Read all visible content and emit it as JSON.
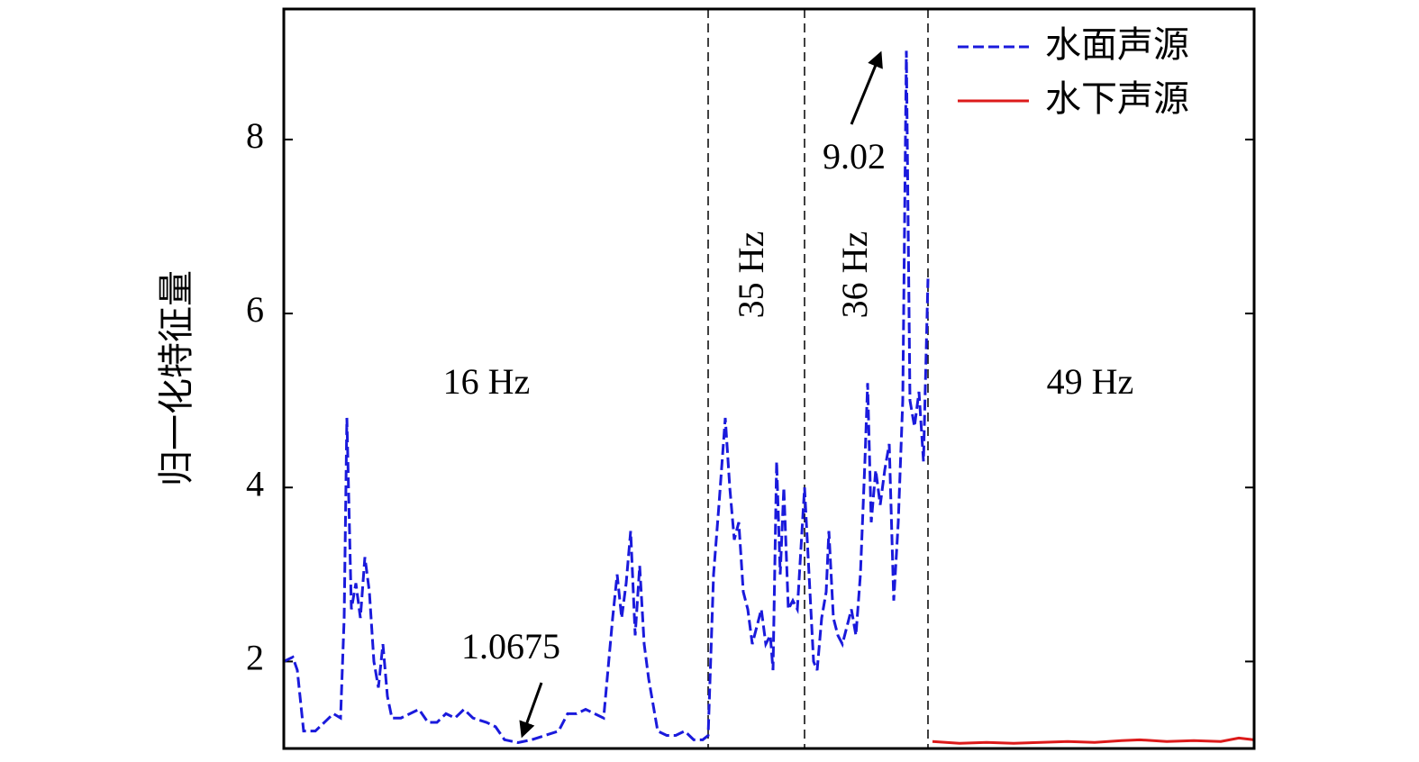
{
  "chart_data": {
    "type": "line",
    "ylabel": "归一化特征量",
    "xlim": [
      0,
      1077
    ],
    "ylim": [
      1,
      9.5
    ],
    "yticks": [
      2,
      4,
      6,
      8
    ],
    "dividers": [
      471,
      578,
      715
    ],
    "legend": "upper right",
    "annotations": [
      "16 Hz",
      "35 Hz",
      "36 Hz",
      "49 Hz",
      "1.0675",
      "9.02"
    ],
    "series": [
      {
        "name": "水面声源",
        "color": "#1a1adc",
        "style": "dashed",
        "x": [
          0,
          10,
          15,
          22,
          35,
          45,
          55,
          63,
          67,
          70,
          75,
          80,
          85,
          90,
          95,
          100,
          105,
          110,
          115,
          120,
          130,
          140,
          150,
          160,
          170,
          180,
          190,
          200,
          210,
          225,
          235,
          245,
          260,
          275,
          290,
          305,
          315,
          325,
          335,
          345,
          355,
          365,
          370,
          375,
          380,
          385,
          390,
          395,
          400,
          405,
          415,
          425,
          435,
          445,
          455,
          465,
          471,
          477,
          483,
          490,
          495,
          500,
          505,
          510,
          515,
          520,
          525,
          530,
          535,
          540,
          543,
          547,
          551,
          555,
          560,
          565,
          570,
          578,
          583,
          588,
          592,
          597,
          602,
          605,
          610,
          615,
          620,
          625,
          630,
          635,
          640,
          645,
          648,
          652,
          657,
          662,
          667,
          672,
          677,
          682,
          687,
          691,
          695,
          700,
          705,
          710,
          715
        ],
        "values": [
          2.0,
          2.05,
          1.9,
          1.2,
          1.2,
          1.3,
          1.4,
          1.35,
          2.5,
          4.8,
          2.6,
          2.9,
          2.5,
          3.2,
          2.8,
          2.0,
          1.7,
          2.2,
          1.6,
          1.35,
          1.35,
          1.4,
          1.45,
          1.3,
          1.3,
          1.4,
          1.35,
          1.45,
          1.35,
          1.3,
          1.25,
          1.1,
          1.0675,
          1.1,
          1.15,
          1.2,
          1.4,
          1.4,
          1.45,
          1.4,
          1.35,
          2.5,
          3.0,
          2.5,
          2.9,
          3.5,
          2.3,
          3.1,
          2.2,
          1.8,
          1.2,
          1.15,
          1.15,
          1.2,
          1.1,
          1.1,
          1.15,
          3.0,
          3.8,
          4.8,
          4.0,
          3.4,
          3.6,
          2.8,
          2.6,
          2.2,
          2.4,
          2.6,
          2.2,
          2.3,
          1.9,
          4.3,
          3.0,
          4.0,
          2.6,
          2.7,
          2.6,
          4.0,
          3.0,
          2.0,
          1.9,
          2.5,
          2.8,
          3.5,
          2.5,
          2.3,
          2.2,
          2.4,
          2.6,
          2.3,
          3.0,
          4.3,
          5.2,
          3.6,
          4.2,
          3.8,
          4.2,
          4.5,
          2.7,
          3.6,
          5.0,
          9.02,
          5.0,
          4.7,
          5.1,
          4.3,
          6.4
        ]
      },
      {
        "name": "水下声源",
        "color": "#dc1a1a",
        "style": "solid",
        "x": [
          720,
          750,
          780,
          810,
          840,
          870,
          900,
          930,
          950,
          980,
          1010,
          1040,
          1060,
          1077
        ],
        "values": [
          1.08,
          1.06,
          1.07,
          1.06,
          1.07,
          1.08,
          1.07,
          1.09,
          1.1,
          1.08,
          1.09,
          1.08,
          1.12,
          1.1
        ]
      }
    ]
  }
}
